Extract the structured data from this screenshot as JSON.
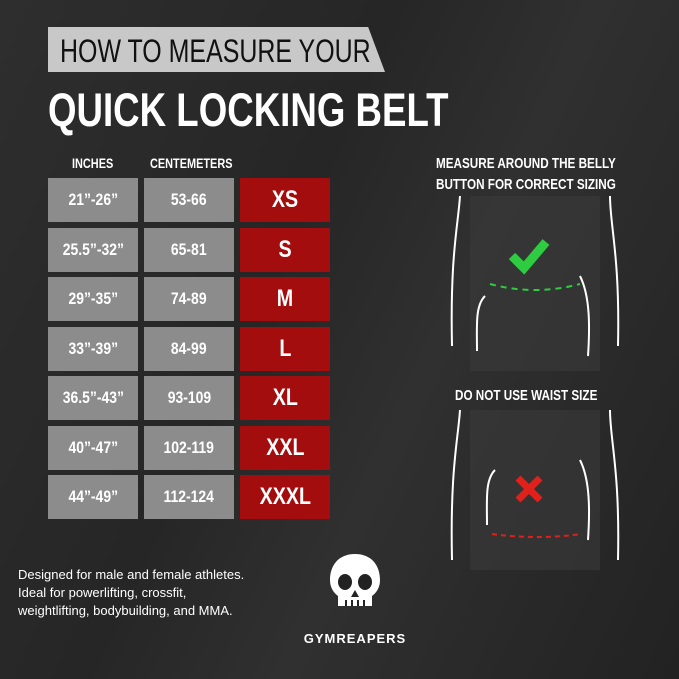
{
  "title": {
    "line1": "HOW TO MEASURE YOUR",
    "line2": "QUICK LOCKING BELT"
  },
  "table": {
    "headers": [
      "INCHES",
      "CENTEMETERS"
    ],
    "rows": [
      {
        "inches": "21”-26”",
        "cm": "53-66",
        "size": "XS"
      },
      {
        "inches": "25.5”-32”",
        "cm": "65-81",
        "size": "S"
      },
      {
        "inches": "29”-35”",
        "cm": "74-89",
        "size": "M"
      },
      {
        "inches": "33”-39”",
        "cm": "84-99",
        "size": "L"
      },
      {
        "inches": "36.5”-43”",
        "cm": "93-109",
        "size": "XL"
      },
      {
        "inches": "40”-47”",
        "cm": "102-119",
        "size": "XXL"
      },
      {
        "inches": "44”-49”",
        "cm": "112-124",
        "size": "XXXL"
      }
    ]
  },
  "description": "Designed for male and female athletes. Ideal for powerlifting, crossfit, weightlifting, bodybuilding, and MMA.",
  "brand": "GYMREAPERS",
  "correct": {
    "pre": "MEASURE AROUND THE ",
    "bold1": "BELLY",
    "line2bold": "BUTTON",
    "post": " FOR CORRECT SIZING",
    "icon": "check-icon",
    "color": "#2ecc40"
  },
  "incorrect": {
    "bold": "DO NOT",
    "post": " USE WAIST SIZE",
    "icon": "x-icon",
    "color": "#e0201b"
  },
  "colors": {
    "size_cell": "#a30d0d",
    "range_cell": "#8c8c8c",
    "title_band": "#c8c8c8"
  }
}
